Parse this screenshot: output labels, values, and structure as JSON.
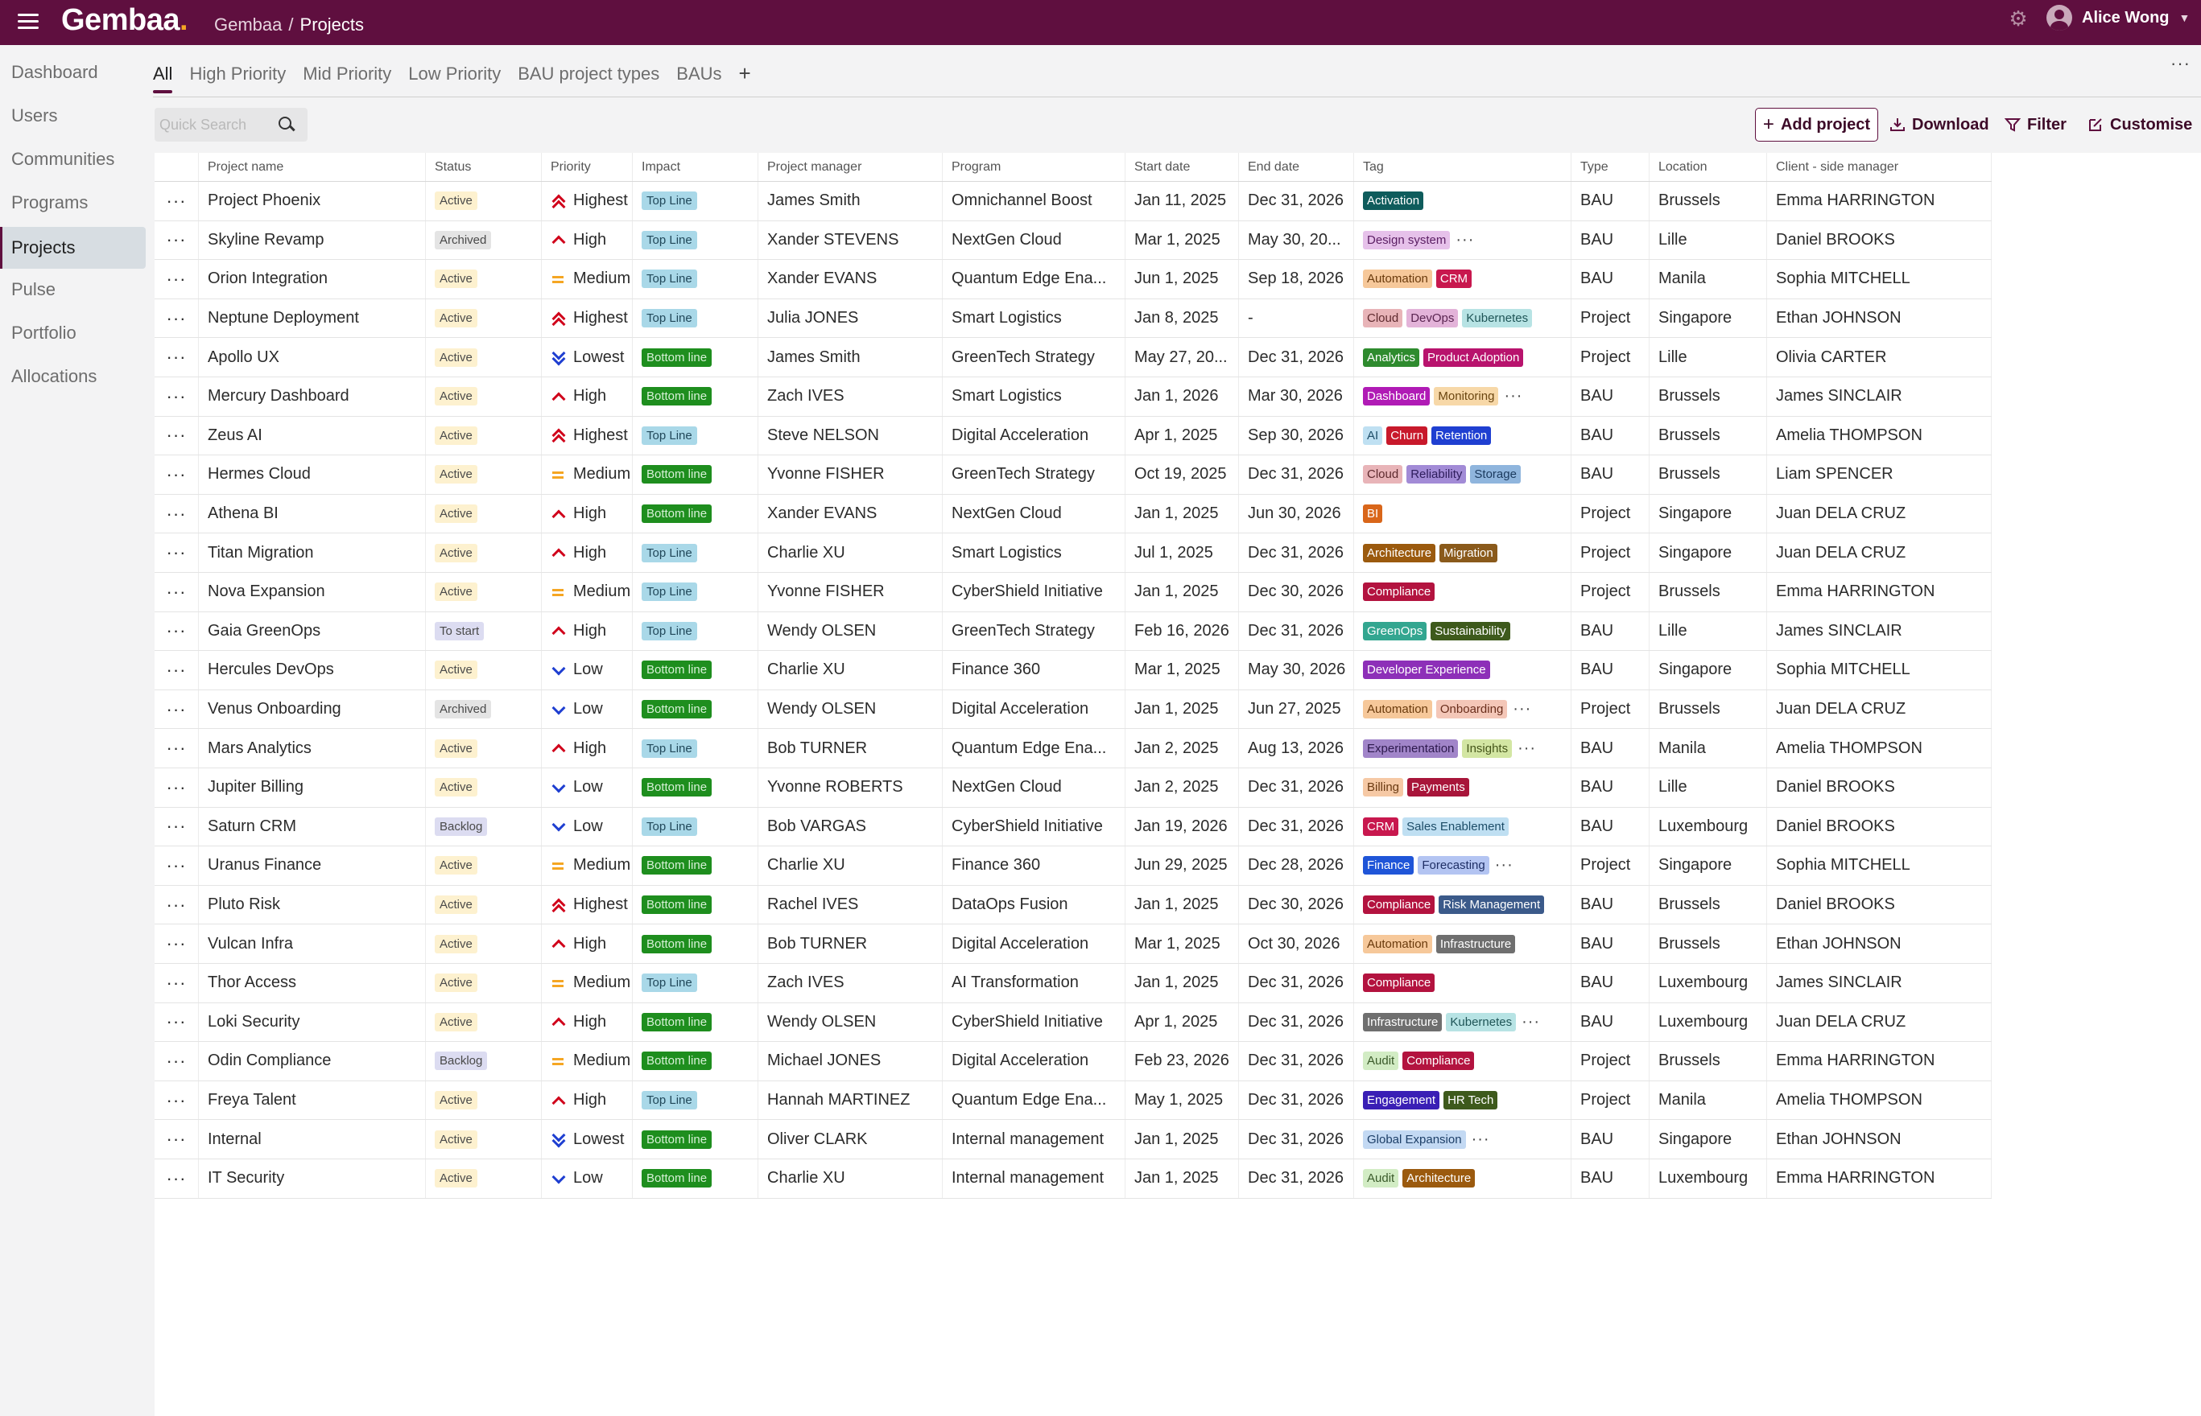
{
  "app": {
    "logo": "Gembaa",
    "logo_dot": ".",
    "breadcrumb": {
      "root": "Gembaa",
      "separator": "/",
      "current": "Projects"
    },
    "user": {
      "name": "Alice Wong"
    },
    "icons": [
      "menu-icon",
      "gear-icon",
      "avatar",
      "chevron-down-icon",
      "search-icon",
      "plus-icon",
      "download-icon",
      "filter-icon",
      "edit-icon"
    ],
    "colors": {
      "topbar": "#5f0f3f",
      "accent": "#5f0f3f",
      "logo_dot": "#f5a623"
    }
  },
  "sidebar": {
    "items": [
      {
        "label": "Dashboard"
      },
      {
        "label": "Users"
      },
      {
        "label": "Communities"
      },
      {
        "label": "Programs"
      },
      {
        "label": "Projects",
        "active": true
      },
      {
        "label": "Pulse"
      },
      {
        "label": "Portfolio"
      },
      {
        "label": "Allocations"
      }
    ]
  },
  "tabs": {
    "items": [
      {
        "label": "All",
        "active": true
      },
      {
        "label": "High Priority"
      },
      {
        "label": "Mid Priority"
      },
      {
        "label": "Low Priority"
      },
      {
        "label": "BAU project types"
      },
      {
        "label": "BAUs"
      }
    ],
    "add_label": "+",
    "more_label": "···"
  },
  "toolbar": {
    "search_placeholder": "Quick Search",
    "add_project": "Add project",
    "download": "Download",
    "filter": "Filter",
    "customise": "Customise"
  },
  "table": {
    "row_menu_label": "···",
    "more_tags_label": "···",
    "columns": [
      "Project name",
      "Status",
      "Priority",
      "Impact",
      "Project manager",
      "Program",
      "Start date",
      "End date",
      "Tag",
      "Type",
      "Location",
      "Client - side manager"
    ],
    "rows": [
      {
        "name": "Project Phoenix",
        "status": "Active",
        "priority": "Highest",
        "impact": "Top Line",
        "pm": "James Smith",
        "program": "Omnichannel Boost",
        "start": "Jan 11, 2025",
        "end": "Dec 31, 2026",
        "tags": [
          {
            "label": "Activation",
            "bg": "#0f5c5c",
            "fg": "#ffffff"
          }
        ],
        "more": false,
        "type": "BAU",
        "location": "Brussels",
        "client": "Emma HARRINGTON"
      },
      {
        "name": "Skyline Revamp",
        "status": "Archived",
        "priority": "High",
        "impact": "Top Line",
        "pm": "Xander STEVENS",
        "program": "NextGen Cloud",
        "start": "Mar 1, 2025",
        "end": "May 30, 20...",
        "tags": [
          {
            "label": "Design system",
            "bg": "#e6c1ea",
            "fg": "#5b1e63"
          }
        ],
        "more": true,
        "type": "BAU",
        "location": "Lille",
        "client": "Daniel BROOKS"
      },
      {
        "name": "Orion Integration",
        "status": "Active",
        "priority": "Medium",
        "impact": "Top Line",
        "pm": "Xander EVANS",
        "program": "Quantum Edge Ena...",
        "start": "Jun 1, 2025",
        "end": "Sep 18, 2026",
        "tags": [
          {
            "label": "Automation",
            "bg": "#f6c89a",
            "fg": "#6a3a0c"
          },
          {
            "label": "CRM",
            "bg": "#c8184e",
            "fg": "#ffffff"
          }
        ],
        "more": false,
        "type": "BAU",
        "location": "Manila",
        "client": "Sophia MITCHELL"
      },
      {
        "name": "Neptune Deployment",
        "status": "Active",
        "priority": "Highest",
        "impact": "Top Line",
        "pm": "Julia JONES",
        "program": "Smart Logistics",
        "start": "Jan 8, 2025",
        "end": "-",
        "tags": [
          {
            "label": "Cloud",
            "bg": "#e8b4b8",
            "fg": "#5e2a2e"
          },
          {
            "label": "DevOps",
            "bg": "#e3b3d9",
            "fg": "#5a2551"
          },
          {
            "label": "Kubernetes",
            "bg": "#b7e3e4",
            "fg": "#1f5557"
          }
        ],
        "more": false,
        "type": "Project",
        "location": "Singapore",
        "client": "Ethan JOHNSON"
      },
      {
        "name": "Apollo UX",
        "status": "Active",
        "priority": "Lowest",
        "impact": "Bottom line",
        "pm": "James Smith",
        "program": "GreenTech Strategy",
        "start": "May 27, 20...",
        "end": "Dec 31, 2026",
        "tags": [
          {
            "label": "Analytics",
            "bg": "#2e8b2e",
            "fg": "#ffffff"
          },
          {
            "label": "Product Adoption",
            "bg": "#b8136d",
            "fg": "#ffffff"
          }
        ],
        "more": false,
        "type": "Project",
        "location": "Lille",
        "client": "Olivia CARTER"
      },
      {
        "name": "Mercury Dashboard",
        "status": "Active",
        "priority": "High",
        "impact": "Bottom line",
        "pm": "Zach IVES",
        "program": "Smart Logistics",
        "start": "Jan 1, 2026",
        "end": "Mar 30, 2026",
        "tags": [
          {
            "label": "Dashboard",
            "bg": "#b01bb5",
            "fg": "#ffffff"
          },
          {
            "label": "Monitoring",
            "bg": "#f7d8a8",
            "fg": "#6b4611"
          }
        ],
        "more": true,
        "type": "BAU",
        "location": "Brussels",
        "client": "James SINCLAIR"
      },
      {
        "name": "Zeus AI",
        "status": "Active",
        "priority": "Highest",
        "impact": "Top Line",
        "pm": "Steve NELSON",
        "program": "Digital Acceleration",
        "start": "Apr 1, 2025",
        "end": "Sep 30, 2026",
        "tags": [
          {
            "label": "AI",
            "bg": "#bfe0f2",
            "fg": "#1d4d68"
          },
          {
            "label": "Churn",
            "bg": "#c8192b",
            "fg": "#ffffff"
          },
          {
            "label": "Retention",
            "bg": "#1f3fd1",
            "fg": "#ffffff"
          }
        ],
        "more": false,
        "type": "BAU",
        "location": "Brussels",
        "client": "Amelia THOMPSON"
      },
      {
        "name": "Hermes Cloud",
        "status": "Active",
        "priority": "Medium",
        "impact": "Bottom line",
        "pm": "Yvonne FISHER",
        "program": "GreenTech Strategy",
        "start": "Oct 19, 2025",
        "end": "Dec 31, 2026",
        "tags": [
          {
            "label": "Cloud",
            "bg": "#e8b4b8",
            "fg": "#5e2a2e"
          },
          {
            "label": "Reliability",
            "bg": "#a28bd6",
            "fg": "#2e1d5c"
          },
          {
            "label": "Storage",
            "bg": "#8fb5dd",
            "fg": "#1b3a5e"
          }
        ],
        "more": false,
        "type": "BAU",
        "location": "Brussels",
        "client": "Liam SPENCER"
      },
      {
        "name": "Athena BI",
        "status": "Active",
        "priority": "High",
        "impact": "Bottom line",
        "pm": "Xander EVANS",
        "program": "NextGen Cloud",
        "start": "Jan 1, 2025",
        "end": "Jun 30, 2026",
        "tags": [
          {
            "label": "BI",
            "bg": "#d9661a",
            "fg": "#ffffff"
          }
        ],
        "more": false,
        "type": "Project",
        "location": "Singapore",
        "client": "Juan DELA CRUZ"
      },
      {
        "name": "Titan Migration",
        "status": "Active",
        "priority": "High",
        "impact": "Top Line",
        "pm": "Charlie XU",
        "program": "Smart Logistics",
        "start": "Jul 1, 2025",
        "end": "Dec 31, 2026",
        "tags": [
          {
            "label": "Architecture",
            "bg": "#9b5a0e",
            "fg": "#ffffff"
          },
          {
            "label": "Migration",
            "bg": "#8a5a1b",
            "fg": "#ffffff"
          }
        ],
        "more": false,
        "type": "Project",
        "location": "Singapore",
        "client": "Juan DELA CRUZ"
      },
      {
        "name": "Nova Expansion",
        "status": "Active",
        "priority": "Medium",
        "impact": "Top Line",
        "pm": "Yvonne FISHER",
        "program": "CyberShield Initiative",
        "start": "Jan 1, 2025",
        "end": "Dec 30, 2026",
        "tags": [
          {
            "label": "Compliance",
            "bg": "#b3133f",
            "fg": "#ffffff"
          }
        ],
        "more": false,
        "type": "Project",
        "location": "Brussels",
        "client": "Emma HARRINGTON"
      },
      {
        "name": "Gaia GreenOps",
        "status": "To start",
        "priority": "High",
        "impact": "Top Line",
        "pm": "Wendy OLSEN",
        "program": "GreenTech Strategy",
        "start": "Feb 16, 2026",
        "end": "Dec 31, 2026",
        "tags": [
          {
            "label": "GreenOps",
            "bg": "#33a690",
            "fg": "#ffffff"
          },
          {
            "label": "Sustainability",
            "bg": "#3e5a1c",
            "fg": "#ffffff"
          }
        ],
        "more": false,
        "type": "BAU",
        "location": "Lille",
        "client": "James SINCLAIR"
      },
      {
        "name": "Hercules DevOps",
        "status": "Active",
        "priority": "Low",
        "impact": "Bottom line",
        "pm": "Charlie XU",
        "program": "Finance 360",
        "start": "Mar 1, 2025",
        "end": "May 30, 2026",
        "tags": [
          {
            "label": "Developer Experience",
            "bg": "#8d2fb8",
            "fg": "#ffffff"
          }
        ],
        "more": false,
        "type": "BAU",
        "location": "Singapore",
        "client": "Sophia MITCHELL"
      },
      {
        "name": "Venus Onboarding",
        "status": "Archived",
        "priority": "Low",
        "impact": "Bottom line",
        "pm": "Wendy OLSEN",
        "program": "Digital Acceleration",
        "start": "Jan 1, 2025",
        "end": "Jun 27, 2025",
        "tags": [
          {
            "label": "Automation",
            "bg": "#f6c89a",
            "fg": "#6a3a0c"
          },
          {
            "label": "Onboarding",
            "bg": "#f4c7b8",
            "fg": "#6a2e1c"
          }
        ],
        "more": true,
        "type": "Project",
        "location": "Brussels",
        "client": "Juan DELA CRUZ"
      },
      {
        "name": "Mars Analytics",
        "status": "Active",
        "priority": "High",
        "impact": "Top Line",
        "pm": "Bob TURNER",
        "program": "Quantum Edge Ena...",
        "start": "Jan 2, 2025",
        "end": "Aug 13, 2026",
        "tags": [
          {
            "label": "Experimentation",
            "bg": "#a185c9",
            "fg": "#2d1a4d"
          },
          {
            "label": "Insights",
            "bg": "#d3e6a3",
            "fg": "#45561a"
          }
        ],
        "more": true,
        "type": "BAU",
        "location": "Manila",
        "client": "Amelia THOMPSON"
      },
      {
        "name": "Jupiter Billing",
        "status": "Active",
        "priority": "Low",
        "impact": "Bottom line",
        "pm": "Yvonne ROBERTS",
        "program": "NextGen Cloud",
        "start": "Jan 2, 2025",
        "end": "Dec 31, 2026",
        "tags": [
          {
            "label": "Billing",
            "bg": "#f6c9a5",
            "fg": "#6a3a12"
          },
          {
            "label": "Payments",
            "bg": "#a8153a",
            "fg": "#ffffff"
          }
        ],
        "more": false,
        "type": "BAU",
        "location": "Lille",
        "client": "Daniel BROOKS"
      },
      {
        "name": "Saturn CRM",
        "status": "Backlog",
        "priority": "Low",
        "impact": "Top Line",
        "pm": "Bob VARGAS",
        "program": "CyberShield Initiative",
        "start": "Jan 19, 2026",
        "end": "Dec 31, 2026",
        "tags": [
          {
            "label": "CRM",
            "bg": "#c8184e",
            "fg": "#ffffff"
          },
          {
            "label": "Sales Enablement",
            "bg": "#bfdff2",
            "fg": "#1d4d68"
          }
        ],
        "more": false,
        "type": "BAU",
        "location": "Luxembourg",
        "client": "Daniel BROOKS"
      },
      {
        "name": "Uranus Finance",
        "status": "Active",
        "priority": "Medium",
        "impact": "Bottom line",
        "pm": "Charlie XU",
        "program": "Finance 360",
        "start": "Jun 29, 2025",
        "end": "Dec 28, 2026",
        "tags": [
          {
            "label": "Finance",
            "bg": "#1f55d8",
            "fg": "#ffffff"
          },
          {
            "label": "Forecasting",
            "bg": "#b3c4f2",
            "fg": "#1f2f66"
          }
        ],
        "more": true,
        "type": "Project",
        "location": "Singapore",
        "client": "Sophia MITCHELL"
      },
      {
        "name": "Pluto Risk",
        "status": "Active",
        "priority": "Highest",
        "impact": "Bottom line",
        "pm": "Rachel IVES",
        "program": "DataOps Fusion",
        "start": "Jan 1, 2025",
        "end": "Dec 30, 2026",
        "tags": [
          {
            "label": "Compliance",
            "bg": "#b3133f",
            "fg": "#ffffff"
          },
          {
            "label": "Risk Management",
            "bg": "#3b5a8a",
            "fg": "#ffffff"
          }
        ],
        "more": false,
        "type": "BAU",
        "location": "Brussels",
        "client": "Daniel BROOKS"
      },
      {
        "name": "Vulcan Infra",
        "status": "Active",
        "priority": "High",
        "impact": "Bottom line",
        "pm": "Bob TURNER",
        "program": "Digital Acceleration",
        "start": "Mar 1, 2025",
        "end": "Oct 30, 2026",
        "tags": [
          {
            "label": "Automation",
            "bg": "#f6c89a",
            "fg": "#6a3a0c"
          },
          {
            "label": "Infrastructure",
            "bg": "#6f6f6f",
            "fg": "#ffffff"
          }
        ],
        "more": false,
        "type": "BAU",
        "location": "Brussels",
        "client": "Ethan JOHNSON"
      },
      {
        "name": "Thor Access",
        "status": "Active",
        "priority": "Medium",
        "impact": "Top Line",
        "pm": "Zach IVES",
        "program": "AI Transformation",
        "start": "Jan 1, 2025",
        "end": "Dec 31, 2026",
        "tags": [
          {
            "label": "Compliance",
            "bg": "#b3133f",
            "fg": "#ffffff"
          }
        ],
        "more": false,
        "type": "BAU",
        "location": "Luxembourg",
        "client": "James SINCLAIR"
      },
      {
        "name": "Loki Security",
        "status": "Active",
        "priority": "High",
        "impact": "Bottom line",
        "pm": "Wendy OLSEN",
        "program": "CyberShield Initiative",
        "start": "Apr 1, 2025",
        "end": "Dec 31, 2026",
        "tags": [
          {
            "label": "Infrastructure",
            "bg": "#6f6f6f",
            "fg": "#ffffff"
          },
          {
            "label": "Kubernetes",
            "bg": "#b7e3e4",
            "fg": "#1f5557"
          }
        ],
        "more": true,
        "type": "BAU",
        "location": "Luxembourg",
        "client": "Juan DELA CRUZ"
      },
      {
        "name": "Odin Compliance",
        "status": "Backlog",
        "priority": "Medium",
        "impact": "Bottom line",
        "pm": "Michael JONES",
        "program": "Digital Acceleration",
        "start": "Feb 23, 2026",
        "end": "Dec 31, 2026",
        "tags": [
          {
            "label": "Audit",
            "bg": "#d2ecc4",
            "fg": "#3a5a2a"
          },
          {
            "label": "Compliance",
            "bg": "#b3133f",
            "fg": "#ffffff"
          }
        ],
        "more": false,
        "type": "Project",
        "location": "Brussels",
        "client": "Emma HARRINGTON"
      },
      {
        "name": "Freya Talent",
        "status": "Active",
        "priority": "High",
        "impact": "Top Line",
        "pm": "Hannah MARTINEZ",
        "program": "Quantum Edge Ena...",
        "start": "May 1, 2025",
        "end": "Dec 31, 2026",
        "tags": [
          {
            "label": "Engagement",
            "bg": "#3a1fb5",
            "fg": "#ffffff"
          },
          {
            "label": "HR Tech",
            "bg": "#3e5a1c",
            "fg": "#ffffff"
          }
        ],
        "more": false,
        "type": "Project",
        "location": "Manila",
        "client": "Amelia THOMPSON"
      },
      {
        "name": "Internal",
        "status": "Active",
        "priority": "Lowest",
        "impact": "Bottom line",
        "pm": "Oliver CLARK",
        "program": "Internal management",
        "start": "Jan 1, 2025",
        "end": "Dec 31, 2026",
        "tags": [
          {
            "label": "Global Expansion",
            "bg": "#c3d9f3",
            "fg": "#1d3f68"
          }
        ],
        "more": true,
        "type": "BAU",
        "location": "Singapore",
        "client": "Ethan JOHNSON"
      },
      {
        "name": "IT Security",
        "status": "Active",
        "priority": "Low",
        "impact": "Bottom line",
        "pm": "Charlie XU",
        "program": "Internal management",
        "start": "Jan 1, 2025",
        "end": "Dec 31, 2026",
        "tags": [
          {
            "label": "Audit",
            "bg": "#d2ecc4",
            "fg": "#3a5a2a"
          },
          {
            "label": "Architecture",
            "bg": "#9b5a0e",
            "fg": "#ffffff"
          }
        ],
        "more": false,
        "type": "BAU",
        "location": "Luxembourg",
        "client": "Emma HARRINGTON"
      }
    ]
  }
}
